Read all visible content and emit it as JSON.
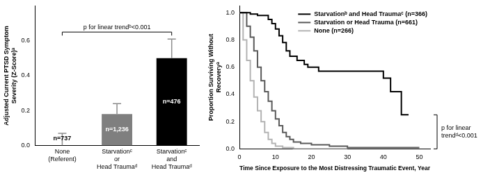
{
  "chart_data": [
    {
      "type": "bar",
      "y_label": "Adjusted Current PTSD Symptom Severity (Z-Score)ᵃ",
      "categories": [
        "None\n(Referent)",
        "Starvationᶜ\nor\nHead Traumaᵈ",
        "Starvationᶜ\nand\nHead Traumaᵈ"
      ],
      "values": [
        0,
        0.18,
        0.5
      ],
      "errors": [
        0.07,
        0.06,
        0.11
      ],
      "colors": [
        "#ffffff",
        "#7f7f7f",
        "#000000"
      ],
      "bar_labels": [
        "n=737",
        "n=1,236",
        "n=476"
      ],
      "annotation": "p for linear trendᵇ<0.001",
      "ylim": [
        0,
        0.8
      ],
      "yticks": [
        {
          "value": 0,
          "label": "0.0"
        },
        {
          "value": 0.2,
          "label": "0.2"
        },
        {
          "value": 0.4,
          "label": "0.4"
        },
        {
          "value": 0.6,
          "label": "0.6"
        }
      ],
      "grid": false
    },
    {
      "type": "step",
      "x_label": "Time Since Exposure to the Most Distressing Traumatic Event, Year",
      "y_label": "Proportion Surviving Without Recoveryᵃ",
      "series": [
        {
          "name": "Starvationᵇ and Head Traumaᶜ (n=366)",
          "color": "#000000",
          "x": [
            0,
            3,
            5,
            8,
            9,
            10,
            11,
            12,
            13,
            14,
            16,
            18,
            19,
            22,
            40,
            42,
            45,
            47
          ],
          "values": [
            1.0,
            0.99,
            0.98,
            0.95,
            0.92,
            0.88,
            0.83,
            0.78,
            0.72,
            0.68,
            0.65,
            0.62,
            0.6,
            0.57,
            0.52,
            0.42,
            0.25,
            0.25
          ]
        },
        {
          "name": "Starvation or Head Trauma (n=661)",
          "color": "#595959",
          "x": [
            0,
            2,
            3,
            4,
            5,
            6,
            7,
            8,
            9,
            10,
            11,
            12,
            13,
            14,
            15,
            17,
            20,
            25,
            30,
            50
          ],
          "values": [
            1.0,
            0.9,
            0.82,
            0.72,
            0.6,
            0.5,
            0.42,
            0.35,
            0.28,
            0.22,
            0.17,
            0.12,
            0.09,
            0.07,
            0.05,
            0.04,
            0.03,
            0.02,
            0.01,
            0.01
          ]
        },
        {
          "name": "None (n=266)",
          "color": "#b3b3b3",
          "x": [
            0,
            1,
            2,
            3,
            4,
            5,
            6,
            7,
            8,
            9,
            10,
            12,
            15,
            30
          ],
          "values": [
            1.0,
            0.8,
            0.65,
            0.5,
            0.38,
            0.28,
            0.2,
            0.12,
            0.07,
            0.04,
            0.02,
            0.01,
            0,
            0
          ]
        }
      ],
      "xlim": [
        0,
        53
      ],
      "xticks": [
        0,
        10,
        20,
        30,
        40,
        50
      ],
      "ylim": [
        0,
        1.05
      ],
      "yticks": [
        {
          "value": 0,
          "label": "0.0"
        },
        {
          "value": 0.2,
          "label": "0.2"
        },
        {
          "value": 0.4,
          "label": "0.4"
        },
        {
          "value": 0.6,
          "label": "0.6"
        },
        {
          "value": 0.8,
          "label": "0.8"
        },
        {
          "value": 1,
          "label": "1.0"
        }
      ],
      "legend": "upper right",
      "grid": false,
      "annotation": "p for linear trendᵈ<0.001"
    }
  ]
}
